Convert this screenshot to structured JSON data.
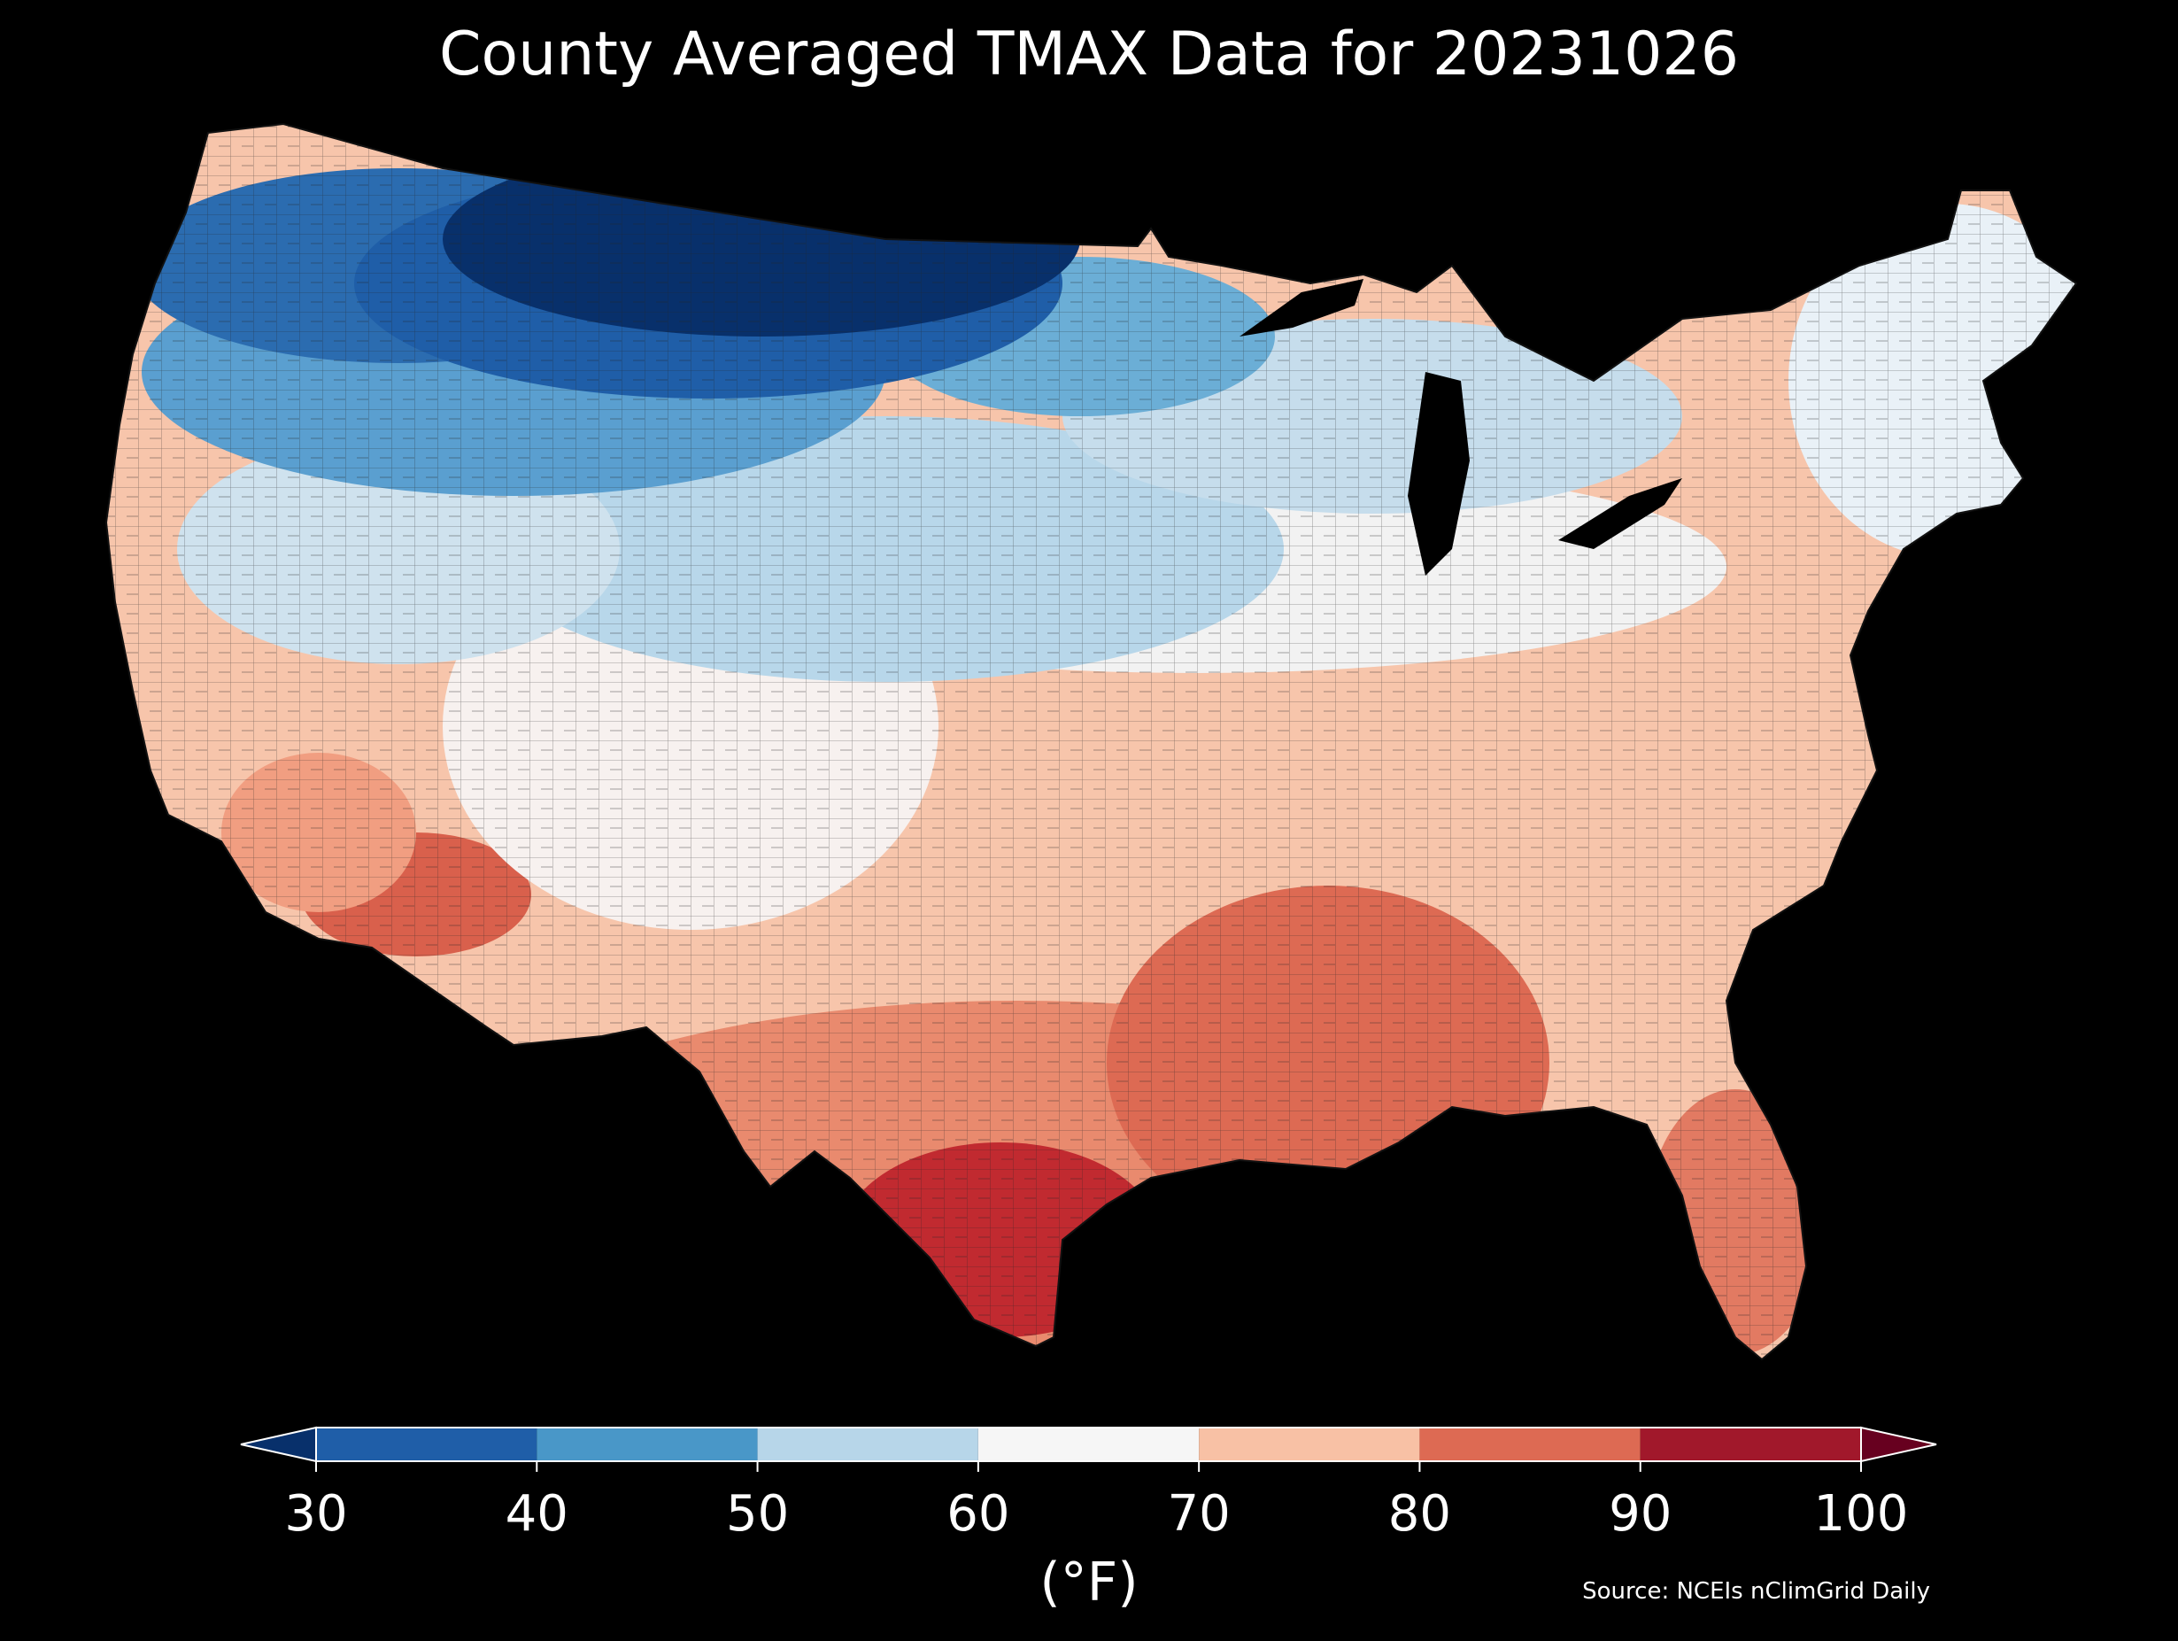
{
  "title": "County Averaged TMAX Data for 20231026",
  "colorbar": {
    "ticks": [
      "30",
      "40",
      "50",
      "60",
      "70",
      "80",
      "90",
      "100"
    ],
    "unit": "(°F)",
    "bins": [
      {
        "from": 30,
        "to": 40,
        "color": "#1f5ea8"
      },
      {
        "from": 40,
        "to": 50,
        "color": "#4997c8"
      },
      {
        "from": 50,
        "to": 60,
        "color": "#b7d6e9"
      },
      {
        "from": 60,
        "to": 70,
        "color": "#f6f6f6"
      },
      {
        "from": 70,
        "to": 80,
        "color": "#f8c1a5"
      },
      {
        "from": 80,
        "to": 90,
        "color": "#dd6a53"
      },
      {
        "from": 90,
        "to": 100,
        "color": "#a1182b"
      }
    ],
    "under_color": "#08306b",
    "over_color": "#67001f"
  },
  "source": "Source: NCEIs nClimGrid Daily",
  "map": {
    "region": "Contiguous United States counties",
    "colors": {
      "deep_blue": "#08306b",
      "blue": "#2b6cb0",
      "mid_blue": "#5a9fd0",
      "light_blue": "#b8d7ea",
      "near_white": "#eef3f7",
      "white": "#f7f1ef",
      "light_orange": "#f7c5ab",
      "orange": "#f19e81",
      "red": "#d9604c",
      "dark_red": "#c12a30"
    }
  }
}
